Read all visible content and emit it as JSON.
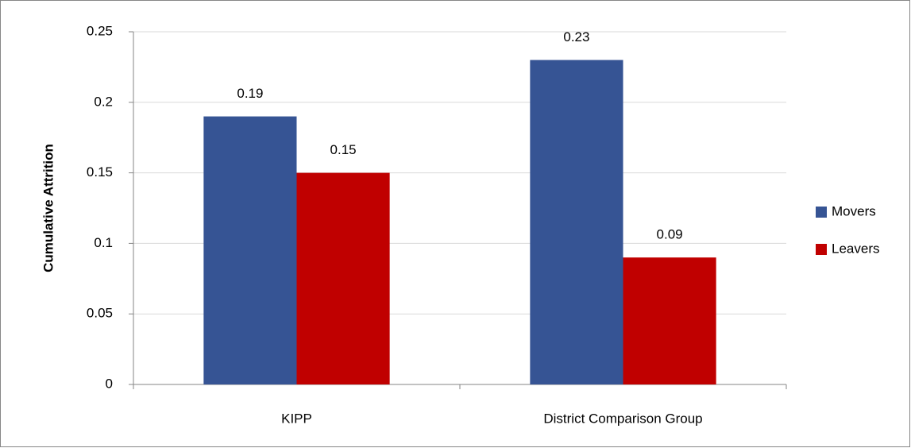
{
  "chart_data": {
    "type": "bar",
    "y_label": "Cumulative Attrition",
    "categories": [
      "KIPP",
      "District Comparison Group"
    ],
    "series": [
      {
        "name": "Movers",
        "color": "#365494",
        "values": [
          0.19,
          0.23
        ]
      },
      {
        "name": "Leavers",
        "color": "#c00000",
        "values": [
          0.15,
          0.09
        ]
      }
    ],
    "ylim": [
      0,
      0.25
    ],
    "yticks": [
      0,
      0.05,
      0.1,
      0.15,
      0.2,
      0.25
    ],
    "grid": true,
    "legend": "right"
  }
}
